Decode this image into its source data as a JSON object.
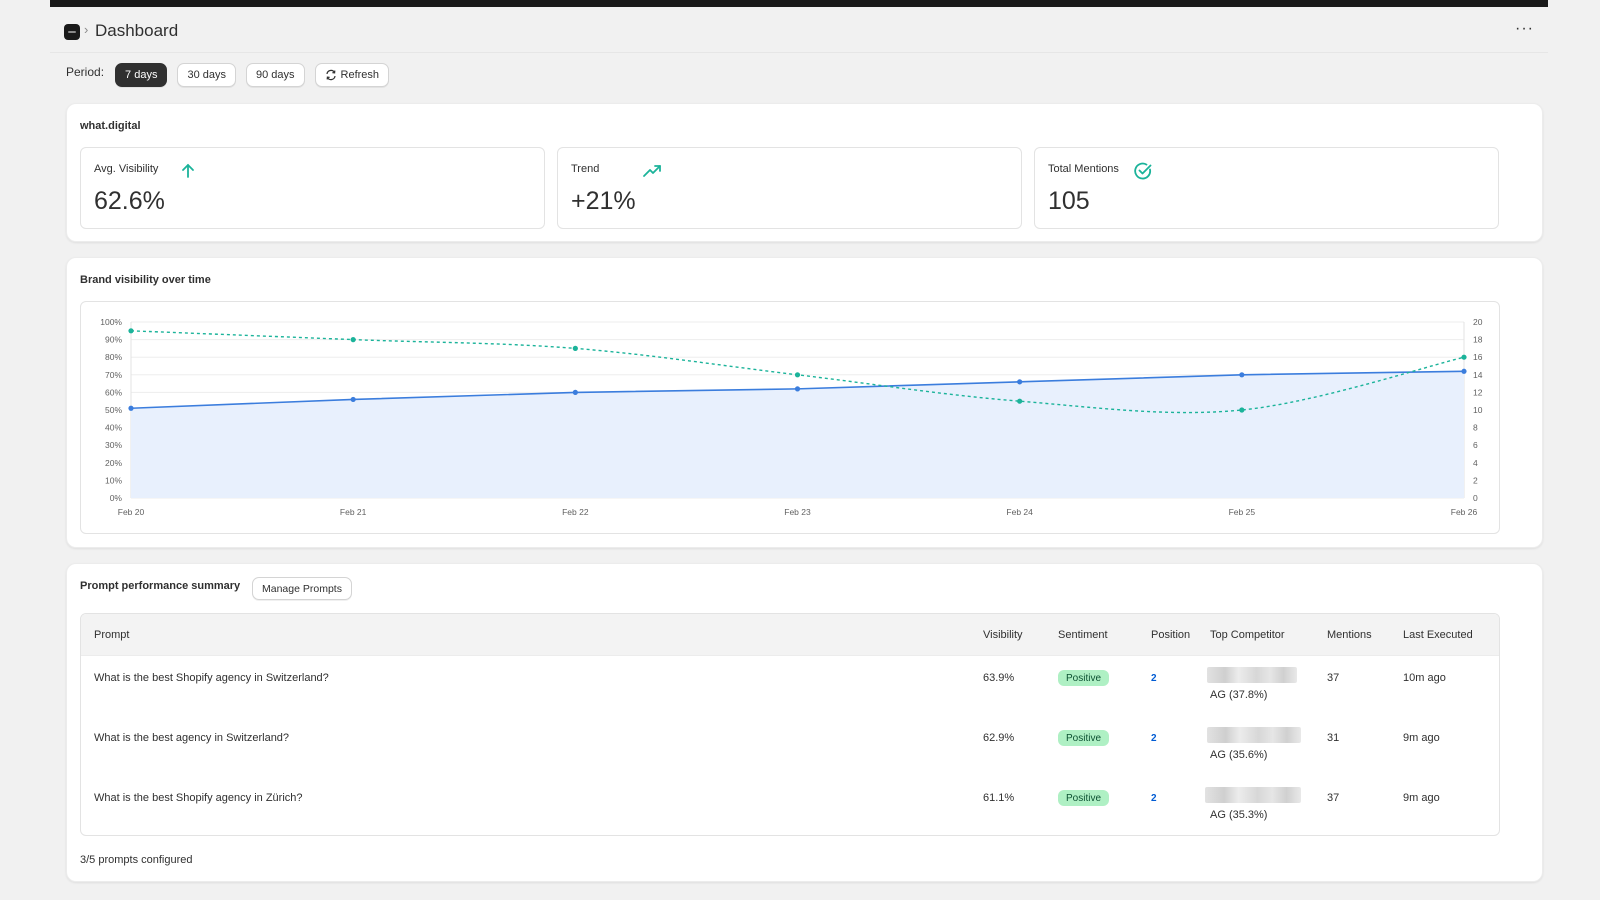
{
  "header": {
    "title": "Dashboard",
    "breadcrumb_sep": "›",
    "more": "···"
  },
  "period": {
    "label": "Period:",
    "options": [
      "7 days",
      "30 days",
      "90 days"
    ],
    "selected": "7 days",
    "refresh_label": "Refresh"
  },
  "brand": {
    "name": "what.digital",
    "metrics": [
      {
        "label": "Avg. Visibility",
        "value": "62.6%",
        "icon": "arrow-up-icon"
      },
      {
        "label": "Trend",
        "value": "+21%",
        "icon": "trending-up-icon"
      },
      {
        "label": "Total Mentions",
        "value": "105",
        "icon": "check-circle-icon"
      }
    ]
  },
  "colors": {
    "visibility_line": "#3b7ddd",
    "mentions_line": "#1bb39a",
    "area_fill": "#e8f0fd",
    "badge_bg": "#aff0c4",
    "link": "#005bd3"
  },
  "chart_data": {
    "type": "line",
    "title": "Brand visibility over time",
    "x": [
      "Feb 20",
      "Feb 21",
      "Feb 22",
      "Feb 23",
      "Feb 24",
      "Feb 25",
      "Feb 26"
    ],
    "series": [
      {
        "axis": "left",
        "style": "solid-area",
        "values": [
          51,
          56,
          60,
          62,
          66,
          70,
          72
        ]
      },
      {
        "axis": "right",
        "style": "dashed",
        "values": [
          19,
          18,
          17,
          14,
          11,
          10,
          16
        ]
      }
    ],
    "y_left": {
      "ticks": [
        "0%",
        "10%",
        "20%",
        "30%",
        "40%",
        "50%",
        "60%",
        "70%",
        "80%",
        "90%",
        "100%"
      ],
      "range": [
        0,
        100
      ]
    },
    "y_right": {
      "ticks": [
        "0",
        "2",
        "4",
        "6",
        "8",
        "10",
        "12",
        "14",
        "16",
        "18",
        "20"
      ],
      "range": [
        0,
        20
      ]
    },
    "grid": true
  },
  "prompts": {
    "title": "Prompt performance summary",
    "manage_label": "Manage Prompts",
    "columns": [
      "Prompt",
      "Visibility",
      "Sentiment",
      "Position",
      "Top Competitor",
      "Mentions",
      "Last Executed"
    ],
    "rows": [
      {
        "prompt": "What is the best Shopify agency in Switzerland?",
        "visibility": "63.9%",
        "sentiment": "Positive",
        "position": "2",
        "competitor": "AG (37.8%)",
        "mentions": "37",
        "last": "10m ago"
      },
      {
        "prompt": "What is the best agency in Switzerland?",
        "visibility": "62.9%",
        "sentiment": "Positive",
        "position": "2",
        "competitor": "AG (35.6%)",
        "mentions": "31",
        "last": "9m ago"
      },
      {
        "prompt": "What is the best Shopify agency in Zürich?",
        "visibility": "61.1%",
        "sentiment": "Positive",
        "position": "2",
        "competitor": "AG (35.3%)",
        "mentions": "37",
        "last": "9m ago"
      }
    ],
    "footer": "3/5 prompts configured"
  }
}
